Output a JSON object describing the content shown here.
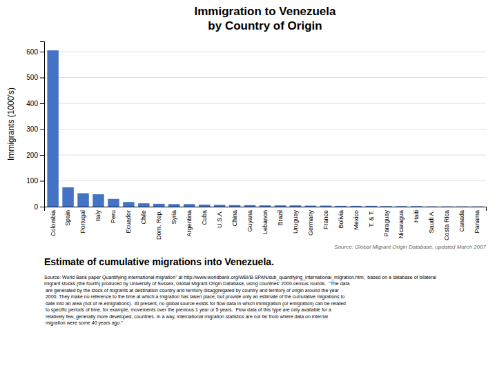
{
  "chart_data": {
    "type": "bar",
    "title": "Immigration to Venezuela",
    "subtitle": "by Country of Origin",
    "ylabel": "Immigrants (1000’s)",
    "annotations": [
      "Source: Global Migrant Origin Database, updated March 2007",
      "Estimate of cumulative migrations into Venezuela.",
      "Source: World Bank paper Quantifying international migration\" at http://www.worldbank.org/WBI/B-SPAN/sub_quantifying_international_migration.htm,  based on a database of bilateral\nmigrant stocks (the fourth) produced by University of Sussex, Global Migrant Origin Database, using countries' 2000 census rounds.  \"The data\n are generated by the stock of migrants at destination country and territory disaggregated by country and territory of origin around the year\n 2000. They make no reference to the time at which a migration has taken place, but provide only an estimate of the cumulative migrations to\n date into an area (not of re-emigrations).  At present, no global source exists for flow data in which immigration (or emigration) can be related\n to specific periods of time, for example, movements over the previous 1 year or 5 years.  Flow data of this type are only available for a\n relatively few, generally more developed, countries. In a way, international migration statistics are not far from where data on internal\n migration were some 40 years ago.\""
    ],
    "categories": [
      "Colombia",
      "Spain",
      "Portugal",
      "Italy",
      "Peru",
      "Ecuador",
      "Chile",
      "Dom. Rep.",
      "Syria",
      "Argentina",
      "Cuba",
      "U.S.A.",
      "China",
      "Guyana",
      "Lebanon",
      "Brazil",
      "Uruguay",
      "Germany",
      "France",
      "Bolivia",
      "Mexico",
      "T. & T.",
      "Paraguay",
      "Nicaragua",
      "Haiti",
      "Saudi A.",
      "Costa Rica",
      "Canada",
      "Panama"
    ],
    "values": [
      605,
      75,
      52,
      48,
      30,
      18,
      13,
      11,
      10,
      10,
      8,
      7,
      6,
      6,
      5,
      5,
      5,
      4,
      4,
      3,
      3,
      3,
      2,
      2,
      2,
      1,
      1,
      1,
      1
    ],
    "color": "#4472C4",
    "ylim": [
      0,
      640
    ],
    "yticks": [
      0,
      100,
      200,
      300,
      400,
      500,
      600
    ],
    "grid": true
  }
}
